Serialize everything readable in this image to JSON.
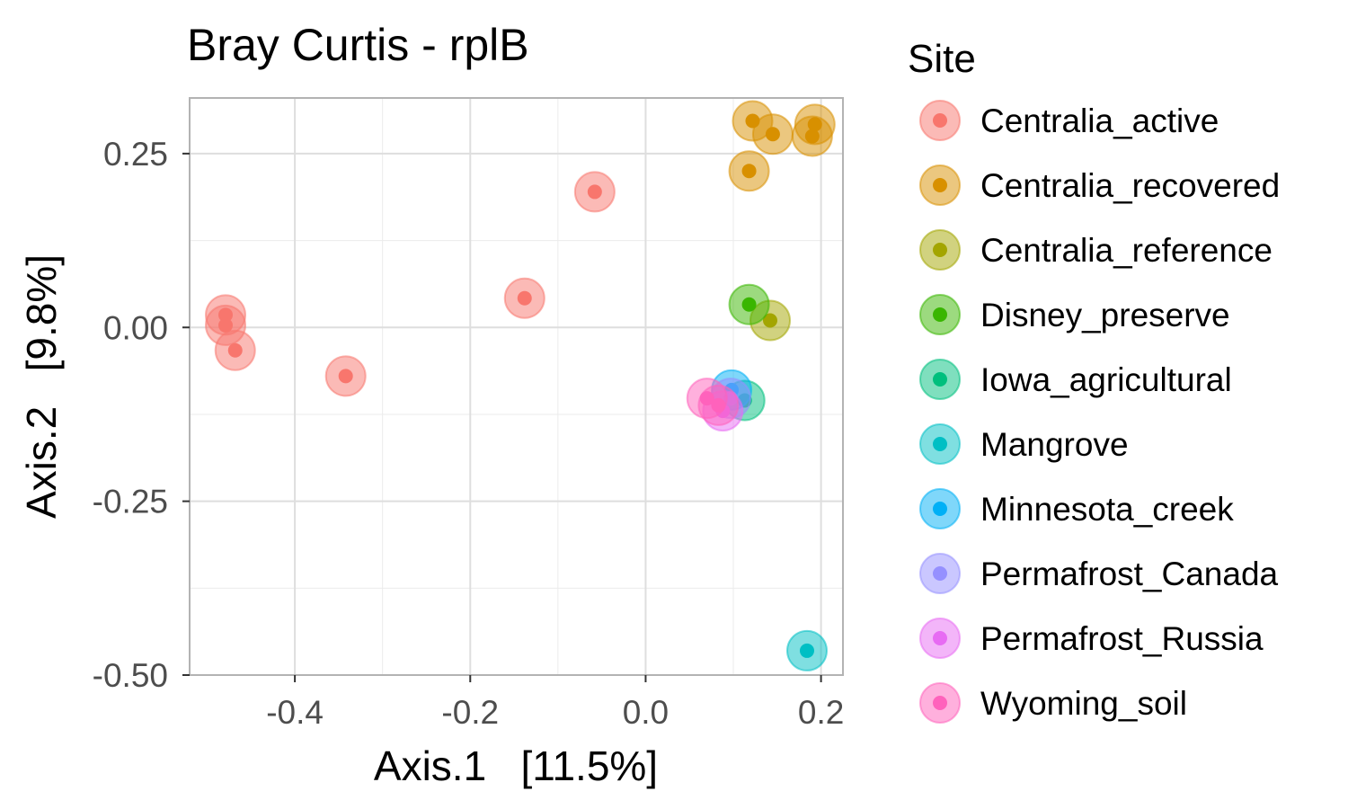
{
  "chart_data": {
    "type": "scatter",
    "title": "Bray Curtis - rplB",
    "xlabel": "Axis.1   [11.5%]",
    "ylabel": "Axis.2   [9.8%]",
    "xlim": [
      -0.52,
      0.225
    ],
    "ylim": [
      -0.5,
      0.33
    ],
    "x_ticks": [
      -0.4,
      -0.2,
      0.0,
      0.2
    ],
    "x_tick_labels": [
      "-0.4",
      "-0.2",
      "0.0",
      "0.2"
    ],
    "y_ticks": [
      -0.5,
      -0.25,
      0.0,
      0.25
    ],
    "y_tick_labels": [
      "-0.50",
      "-0.25",
      "0.00",
      "0.25"
    ],
    "grid": true,
    "legend_title": "Site",
    "legend_position": "right",
    "series": [
      {
        "name": "Centralia_active",
        "color": "#F8766D",
        "x": [
          -0.058,
          -0.138,
          -0.342,
          -0.479,
          -0.479,
          -0.468
        ],
        "y": [
          0.195,
          0.042,
          -0.07,
          0.018,
          0.003,
          -0.033
        ]
      },
      {
        "name": "Centralia_recovered",
        "color": "#D89000",
        "x": [
          0.122,
          0.145,
          0.19,
          0.193,
          0.118
        ],
        "y": [
          0.297,
          0.278,
          0.275,
          0.292,
          0.225
        ]
      },
      {
        "name": "Centralia_reference",
        "color": "#A3A500",
        "x": [
          0.142
        ],
        "y": [
          0.01
        ]
      },
      {
        "name": "Disney_preserve",
        "color": "#39B600",
        "x": [
          0.118
        ],
        "y": [
          0.033
        ]
      },
      {
        "name": "Iowa_agricultural",
        "color": "#00BF7D",
        "x": [
          0.113
        ],
        "y": [
          -0.105
        ]
      },
      {
        "name": "Mangrove",
        "color": "#00BFC4",
        "x": [
          0.184
        ],
        "y": [
          -0.465
        ]
      },
      {
        "name": "Minnesota_creek",
        "color": "#00B0F6",
        "x": [
          0.098
        ],
        "y": [
          -0.09
        ]
      },
      {
        "name": "Permafrost_Canada",
        "color": "#9590FF",
        "x": [
          0.097
        ],
        "y": [
          -0.102
        ]
      },
      {
        "name": "Permafrost_Russia",
        "color": "#E76BF3",
        "x": [
          0.088
        ],
        "y": [
          -0.12
        ]
      },
      {
        "name": "Wyoming_soil",
        "color": "#FF62BC",
        "x": [
          0.07,
          0.083
        ],
        "y": [
          -0.102,
          -0.112
        ]
      }
    ]
  }
}
